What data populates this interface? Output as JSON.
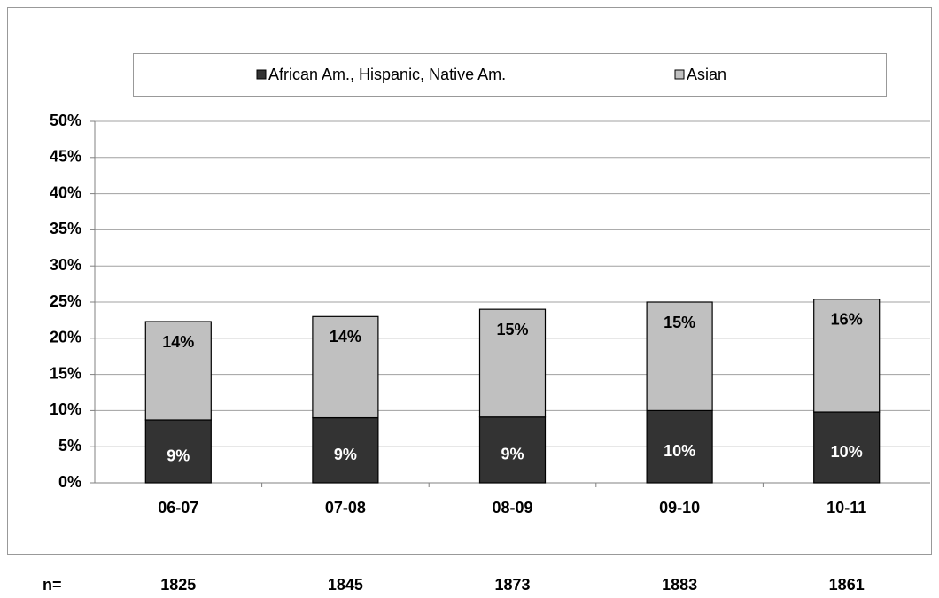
{
  "chart_data": {
    "type": "stacked_bar",
    "categories": [
      "06-07",
      "07-08",
      "08-09",
      "09-10",
      "10-11"
    ],
    "series": [
      {
        "name": "African Am., Hispanic, Native Am.",
        "color": "#333333",
        "values": [
          8.7,
          9.0,
          9.1,
          10.0,
          9.8
        ],
        "value_labels": [
          "9%",
          "9%",
          "9%",
          "10%",
          "10%"
        ]
      },
      {
        "name": "Asian",
        "color": "#c0c0c0",
        "values": [
          13.6,
          14.0,
          14.9,
          15.0,
          15.6
        ],
        "value_labels": [
          "14%",
          "14%",
          "15%",
          "15%",
          "16%"
        ]
      }
    ],
    "ylim": [
      0,
      50
    ],
    "yticks": [
      {
        "value": 0,
        "label": "0%"
      },
      {
        "value": 5,
        "label": "5%"
      },
      {
        "value": 10,
        "label": "10%"
      },
      {
        "value": 15,
        "label": "15%"
      },
      {
        "value": 20,
        "label": "20%"
      },
      {
        "value": 25,
        "label": "25%"
      },
      {
        "value": 30,
        "label": "30%"
      },
      {
        "value": 35,
        "label": "35%"
      },
      {
        "value": 40,
        "label": "40%"
      },
      {
        "value": 45,
        "label": "45%"
      },
      {
        "value": 50,
        "label": "50%"
      }
    ],
    "grid": true,
    "legend": "top",
    "n_label": "n=",
    "n_values": [
      1825,
      1845,
      1873,
      1883,
      1861
    ]
  }
}
